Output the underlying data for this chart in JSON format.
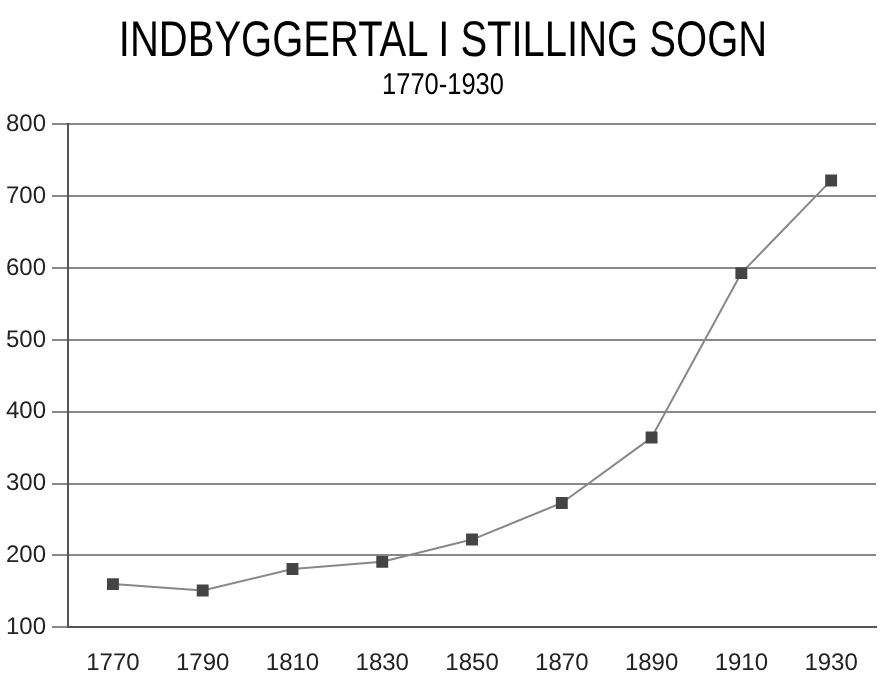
{
  "chart_data": {
    "type": "line",
    "title": "INDBYGGERTAL I STILLING SOGN",
    "subtitle": "1770-1930",
    "categories": [
      "1770",
      "1790",
      "1810",
      "1830",
      "1850",
      "1870",
      "1890",
      "1910",
      "1930"
    ],
    "series": [
      {
        "color": "#444444",
        "values": [
          160,
          151,
          181,
          191,
          222,
          273,
          364,
          593,
          722
        ]
      }
    ],
    "ylim": [
      100,
      800
    ],
    "yticks": [
      100,
      200,
      300,
      400,
      500,
      600,
      700,
      800
    ],
    "grid": "y",
    "legend": false,
    "marker": "square",
    "line_style": "solid"
  }
}
